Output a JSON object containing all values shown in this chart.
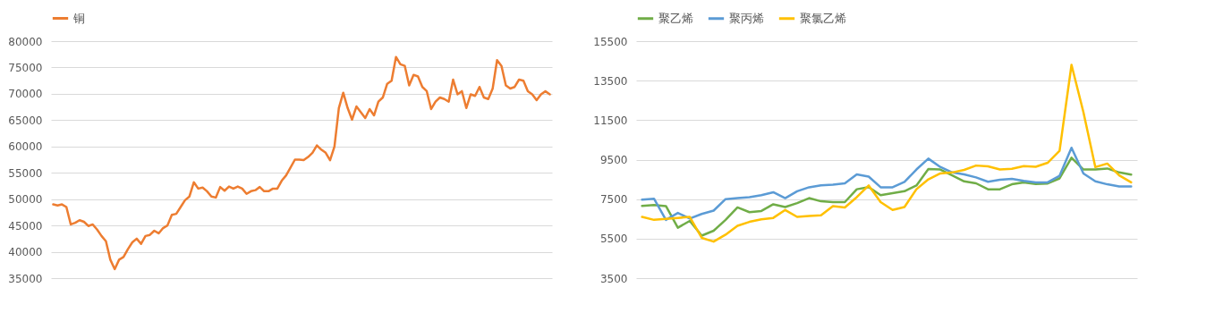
{
  "chart_data": [
    {
      "type": "line",
      "categories": [
        null,
        null,
        null,
        null,
        null,
        null,
        null,
        null,
        null,
        null,
        null,
        null,
        null,
        null,
        null,
        null,
        null,
        null,
        null,
        null,
        null,
        null,
        null,
        null,
        null,
        null,
        null,
        null,
        null,
        null,
        null,
        null,
        null,
        null,
        null,
        null,
        null,
        null,
        null,
        null,
        null,
        null,
        null,
        null,
        null,
        null,
        null,
        null,
        null,
        null,
        null,
        null,
        null,
        null,
        null,
        null,
        null,
        null,
        null,
        null,
        null,
        null,
        null,
        null,
        null,
        null,
        null,
        null,
        null,
        null,
        null,
        null,
        null,
        null,
        null,
        null,
        null,
        null,
        null,
        null,
        null,
        null,
        null,
        null,
        null,
        null,
        null,
        null,
        null,
        null,
        null,
        null,
        null,
        null,
        null,
        null,
        null,
        null,
        null,
        null,
        null,
        null,
        null,
        null,
        null,
        null,
        null,
        null,
        null,
        null,
        null,
        null,
        null,
        null
      ],
      "ylim": [
        35000,
        80000
      ],
      "yticks": [
        35000,
        40000,
        45000,
        50000,
        55000,
        60000,
        65000,
        70000,
        75000,
        80000
      ],
      "grid": "y",
      "legend": "top",
      "tick_labels": "y",
      "series": [
        {
          "name": "铜",
          "color": "#ed7d31",
          "values": [
            49000,
            48800,
            49000,
            48500,
            45200,
            45500,
            46000,
            45700,
            44900,
            45200,
            44200,
            43000,
            42000,
            38500,
            36700,
            38500,
            39000,
            40500,
            41800,
            42500,
            41500,
            43000,
            43200,
            44000,
            43500,
            44500,
            45000,
            47000,
            47200,
            48500,
            49800,
            50500,
            53200,
            52000,
            52200,
            51500,
            50500,
            50300,
            52300,
            51600,
            52400,
            52000,
            52400,
            52000,
            51000,
            51500,
            51700,
            52300,
            51500,
            51500,
            52000,
            52000,
            53500,
            54500,
            56000,
            57500,
            57500,
            57400,
            58000,
            58800,
            60200,
            59400,
            58800,
            57400,
            60000,
            67300,
            70200,
            67300,
            65100,
            67600,
            66500,
            65400,
            67100,
            65900,
            68500,
            69300,
            71900,
            72500,
            77000,
            75600,
            75300,
            71600,
            73600,
            73300,
            71300,
            70500,
            67100,
            68500,
            69300,
            69000,
            68500,
            72700,
            69900,
            70500,
            67300,
            69900,
            69600,
            71300,
            69300,
            69000,
            71000,
            76400,
            75300,
            71600,
            71000,
            71300,
            72700,
            72500,
            70500,
            69900,
            68800,
            69900,
            70500,
            69900
          ]
        }
      ]
    },
    {
      "type": "line",
      "categories": [
        null,
        null,
        null,
        null,
        null,
        null,
        null,
        null,
        null,
        null,
        null,
        null,
        null,
        null,
        null,
        null,
        null,
        null,
        null,
        null,
        null,
        null,
        null,
        null,
        null,
        null,
        null,
        null,
        null,
        null,
        null,
        null,
        null,
        null,
        null,
        null,
        null,
        null,
        null,
        null,
        null,
        null
      ],
      "ylim": [
        3500,
        15500
      ],
      "yticks": [
        3500,
        5500,
        7500,
        9500,
        11500,
        13500,
        15500
      ],
      "grid": "y",
      "legend": "top",
      "tick_labels": "y",
      "series": [
        {
          "name": "聚乙烯",
          "color": "#70ad47",
          "values": [
            7160,
            7200,
            7150,
            6050,
            6400,
            5650,
            5900,
            6450,
            7080,
            6840,
            6900,
            7240,
            7100,
            7300,
            7550,
            7390,
            7350,
            7350,
            8000,
            8110,
            7700,
            7800,
            7900,
            8190,
            9020,
            9000,
            8700,
            8400,
            8300,
            8000,
            8000,
            8250,
            8350,
            8270,
            8290,
            8550,
            9600,
            9000,
            9000,
            9050,
            8850,
            8740
          ]
        },
        {
          "name": "聚丙烯",
          "color": "#5b9bd5",
          "values": [
            7470,
            7520,
            6450,
            6800,
            6520,
            6750,
            6920,
            7500,
            7550,
            7600,
            7700,
            7850,
            7550,
            7900,
            8100,
            8200,
            8230,
            8300,
            8750,
            8640,
            8100,
            8100,
            8370,
            9000,
            9550,
            9130,
            8850,
            8750,
            8600,
            8380,
            8480,
            8530,
            8420,
            8350,
            8350,
            8680,
            10100,
            8800,
            8400,
            8250,
            8140,
            8140
          ]
        },
        {
          "name": "聚氯乙烯",
          "color": "#ffc000",
          "values": [
            6600,
            6450,
            6500,
            6550,
            6600,
            5540,
            5350,
            5700,
            6150,
            6350,
            6480,
            6550,
            6950,
            6600,
            6650,
            6680,
            7150,
            7080,
            7600,
            8190,
            7350,
            6950,
            7100,
            8000,
            8500,
            8800,
            8850,
            8980,
            9200,
            9160,
            9000,
            9040,
            9170,
            9140,
            9340,
            9950,
            14300,
            11900,
            9120,
            9300,
            8700,
            8350
          ]
        }
      ]
    }
  ]
}
